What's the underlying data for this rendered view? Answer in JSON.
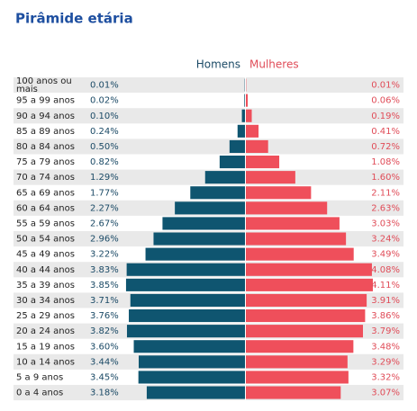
{
  "chart_data": {
    "type": "pyramid",
    "title": "Pirâmide etária",
    "categories": [
      "100 anos ou mais",
      "95 a 99 anos",
      "90 a 94 anos",
      "85 a 89 anos",
      "80 a 84 anos",
      "75 a 79 anos",
      "70 a 74 anos",
      "65 a 69 anos",
      "60 a 64 anos",
      "55 a 59 anos",
      "50 a 54 anos",
      "45 a 49 anos",
      "40 a 44 anos",
      "35 a 39 anos",
      "30 a 34 anos",
      "25 a 29 anos",
      "20 a 24 anos",
      "15 a 19 anos",
      "10 a 14 anos",
      "5 a 9 anos",
      "0 a 4 anos"
    ],
    "series": [
      {
        "name": "Homens",
        "color": "#0f5570",
        "values": [
          0.01,
          0.02,
          0.1,
          0.24,
          0.5,
          0.82,
          1.29,
          1.77,
          2.27,
          2.67,
          2.96,
          3.22,
          3.83,
          3.85,
          3.71,
          3.76,
          3.82,
          3.6,
          3.44,
          3.45,
          3.18
        ],
        "value_labels": [
          "0.01%",
          "0.02%",
          "0.10%",
          "0.24%",
          "0.50%",
          "0.82%",
          "1.29%",
          "1.77%",
          "2.27%",
          "2.67%",
          "2.96%",
          "3.22%",
          "3.83%",
          "3.85%",
          "3.71%",
          "3.76%",
          "3.82%",
          "3.60%",
          "3.44%",
          "3.45%",
          "3.18%"
        ]
      },
      {
        "name": "Mulheres",
        "color": "#ef4f5b",
        "values": [
          0.01,
          0.06,
          0.19,
          0.41,
          0.72,
          1.08,
          1.6,
          2.11,
          2.63,
          3.03,
          3.24,
          3.49,
          4.08,
          4.11,
          3.91,
          3.86,
          3.79,
          3.48,
          3.29,
          3.32,
          3.07
        ],
        "value_labels": [
          "0.01%",
          "0.06%",
          "0.19%",
          "0.41%",
          "0.72%",
          "1.08%",
          "1.60%",
          "2.11%",
          "2.63%",
          "3.03%",
          "3.24%",
          "3.49%",
          "4.08%",
          "4.11%",
          "3.91%",
          "3.86%",
          "3.79%",
          "3.48%",
          "3.29%",
          "3.32%",
          "3.07%"
        ]
      }
    ]
  }
}
